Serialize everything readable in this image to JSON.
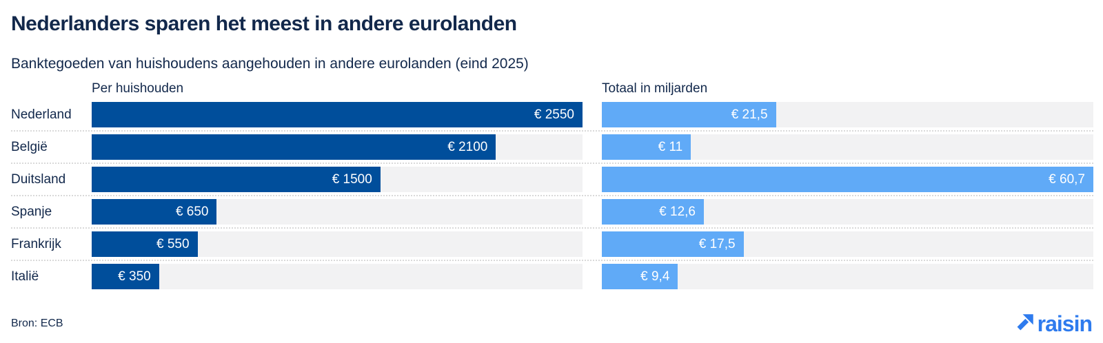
{
  "title": "Nederlanders sparen het meest in andere eurolanden",
  "subtitle": "Banktegoeden van huishoudens aangehouden in andere eurolanden (eind 2025)",
  "column_headers": {
    "left": "Per huishouden",
    "right": "Totaal in miljarden"
  },
  "source": "Bron: ECB",
  "logo": {
    "text": "raisin",
    "icon": "arrow-up-right-icon"
  },
  "colors": {
    "title_text": "#12284b",
    "dark_bar": "#004e9b",
    "light_bar": "#60aaf7",
    "bar_track": "#f2f2f3",
    "separator_dots": "#d9d9d9",
    "logo_blue": "#2e7bee",
    "bar_value_text": "#ffffff"
  },
  "chart_data": {
    "type": "bar",
    "orientation": "horizontal",
    "title": "Nederlanders sparen het meest in andere eurolanden",
    "subtitle": "Banktegoeden van huishoudens aangehouden in andere eurolanden (eind 2025)",
    "categories": [
      "Nederland",
      "België",
      "Duitsland",
      "Spanje",
      "Frankrijk",
      "Italië"
    ],
    "series": [
      {
        "name": "Per huishouden",
        "unit": "EUR per huishouden",
        "values": [
          2550,
          2100,
          1500,
          650,
          550,
          350
        ],
        "labels": [
          "€ 2550",
          "€ 2100",
          "€ 1500",
          "€ 650",
          "€ 550",
          "€ 350"
        ],
        "max": 2550,
        "color": "#004e9b"
      },
      {
        "name": "Totaal in miljarden",
        "unit": "EUR miljard",
        "values": [
          21.5,
          11,
          60.7,
          12.6,
          17.5,
          9.4
        ],
        "labels": [
          "€ 21,5",
          "€ 11",
          "€ 60,7",
          "€ 12,6",
          "€ 17,5",
          "€ 9,4"
        ],
        "max": 60.7,
        "color": "#60aaf7"
      }
    ],
    "legend_position": "column-headers",
    "grid": false,
    "value_labels": "inside-end",
    "source": "Bron: ECB"
  }
}
